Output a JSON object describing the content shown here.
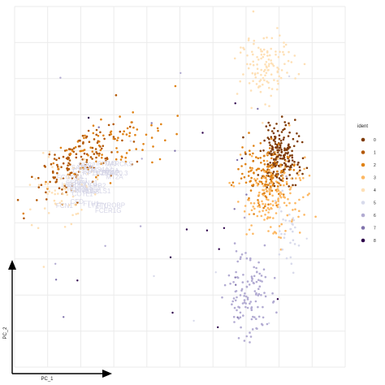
{
  "chart_data": {
    "type": "scatter",
    "title": "",
    "xlabel": "PC_1",
    "ylabel": "PC_2",
    "xlim": [
      -10,
      10
    ],
    "ylim": [
      -10,
      10
    ],
    "grid": true,
    "legend_position": "right",
    "legend": {
      "title": "ident",
      "entries": [
        {
          "label": "0",
          "color": "#7f3b08"
        },
        {
          "label": "1",
          "color": "#b35806"
        },
        {
          "label": "2",
          "color": "#e08214"
        },
        {
          "label": "3",
          "color": "#fdb863"
        },
        {
          "label": "4",
          "color": "#fee0b6"
        },
        {
          "label": "5",
          "color": "#d8daeb"
        },
        {
          "label": "6",
          "color": "#b2abd2"
        },
        {
          "label": "7",
          "color": "#8073ac"
        },
        {
          "label": "8",
          "color": "#2d004b"
        }
      ]
    },
    "clusters": [
      {
        "label": "1",
        "center": [
          -6.2,
          1.4
        ],
        "spread": [
          1.4,
          0.8
        ],
        "n": 140,
        "tilt": 0.45
      },
      {
        "label": "2",
        "center": [
          -4.2,
          2.2
        ],
        "spread": [
          1.8,
          0.9
        ],
        "n": 90,
        "tilt": 0.4
      },
      {
        "label": "4",
        "center": [
          -7.0,
          -0.2
        ],
        "spread": [
          1.0,
          0.9
        ],
        "n": 60,
        "tilt": 0.0
      },
      {
        "label": "4",
        "center": [
          5.2,
          6.6
        ],
        "spread": [
          0.9,
          0.9
        ],
        "n": 120,
        "tilt": 0.0
      },
      {
        "label": "0",
        "center": [
          6.1,
          1.8
        ],
        "spread": [
          0.65,
          0.9
        ],
        "n": 200,
        "tilt": 0.0
      },
      {
        "label": "2",
        "center": [
          5.2,
          0.6
        ],
        "spread": [
          0.75,
          0.9
        ],
        "n": 140,
        "tilt": 0.0
      },
      {
        "label": "3",
        "center": [
          5.6,
          -0.6
        ],
        "spread": [
          1.0,
          1.1
        ],
        "n": 150,
        "tilt": 0.0
      },
      {
        "label": "6",
        "center": [
          4.2,
          -6.0
        ],
        "spread": [
          0.7,
          1.3
        ],
        "n": 120,
        "tilt": 0.0
      },
      {
        "label": "5",
        "center": [
          6.4,
          -2.8
        ],
        "spread": [
          0.5,
          1.0
        ],
        "n": 30,
        "tilt": 0.0
      }
    ],
    "gene_labels": [
      "FCER1G",
      "AIF1",
      "CST3",
      "TYROBP",
      "LST1",
      "FTL",
      "FCN1",
      "S100A9",
      "LGALS1",
      "CD74",
      "RP11-290F20.3",
      "LYZ",
      "HLA-DRA",
      "FTH1",
      "TYMP",
      "SAT1",
      "COTL1",
      "IFITM3",
      "NPC2",
      "PSAP",
      "MS4A7",
      "CFD",
      "CTSS",
      "LGALS2",
      "CD68",
      "SERPINA1",
      "GPX1",
      "HCK",
      "LILRB2",
      "MT2A",
      "FCGR3A",
      "MARCKS"
    ]
  }
}
